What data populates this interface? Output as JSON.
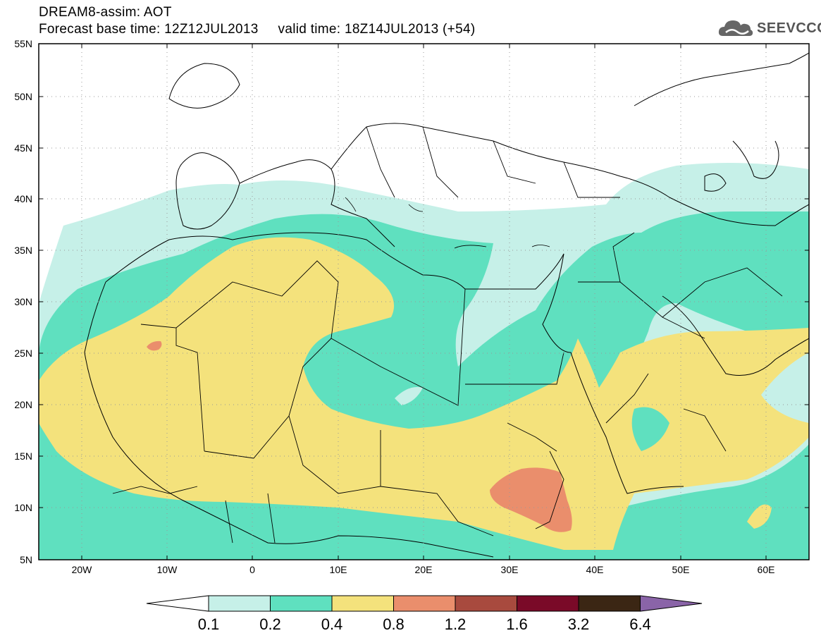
{
  "header": {
    "line1": "DREAM8-assim: AOT",
    "line2": "Forecast base time: 12Z12JUL2013     valid time: 18Z14JUL2013 (+54)"
  },
  "logo": {
    "text": "SEEVCCC",
    "icon": "cloud-icon"
  },
  "map": {
    "lon_range": [
      -25,
      65
    ],
    "lat_range": [
      5,
      55
    ],
    "lat_ticks": [
      "5N",
      "10N",
      "15N",
      "20N",
      "25N",
      "30N",
      "35N",
      "40N",
      "45N",
      "50N",
      "55N"
    ],
    "lon_ticks": [
      "20W",
      "10W",
      "0",
      "10E",
      "20E",
      "30E",
      "40E",
      "50E",
      "60E"
    ],
    "grid": "dotted"
  },
  "colorbar": {
    "labels": [
      "0.1",
      "0.2",
      "0.4",
      "0.8",
      "1.2",
      "1.6",
      "3.2",
      "6.4"
    ],
    "colors": [
      "#ffffff",
      "#c6f0e8",
      "#5fe0bf",
      "#f4e27c",
      "#ea8e6c",
      "#a84a3e",
      "#7a0a28",
      "#3b2614",
      "#8a64a8"
    ]
  },
  "colors": {
    "very_light": "#c6f0e8",
    "light": "#5fe0bf",
    "mid": "#f4e27c",
    "high": "#ea8e6c"
  }
}
